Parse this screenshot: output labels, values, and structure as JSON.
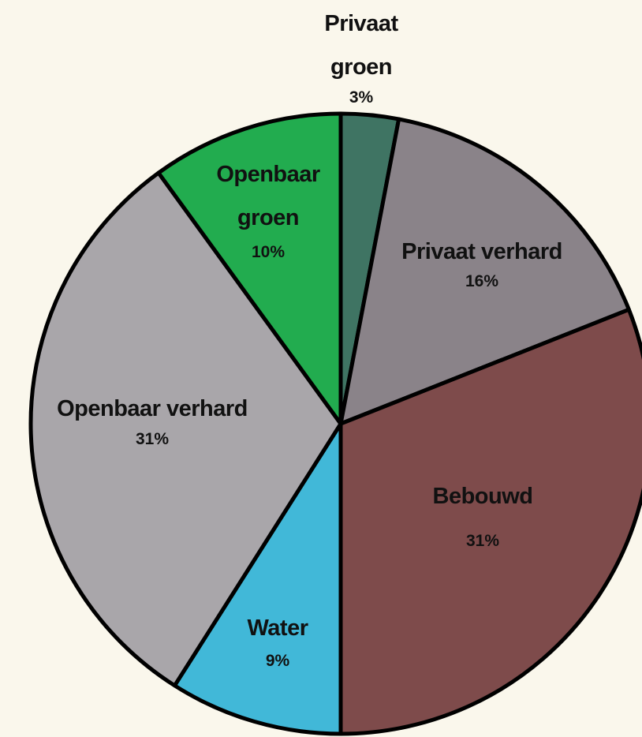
{
  "chart_data": {
    "type": "pie",
    "categories": [
      "Privaat groen",
      "Privaat verhard",
      "Bebouwd",
      "Water",
      "Openbaar verhard",
      "Openbaar groen"
    ],
    "values": [
      3,
      16,
      31,
      9,
      31,
      10
    ],
    "value_labels": [
      "3%",
      "16%",
      "31%",
      "9%",
      "31%",
      "10%"
    ],
    "colors": [
      "#3f7463",
      "#8a8389",
      "#7e4b4b",
      "#41b8d8",
      "#a9a6aa",
      "#22ac4f"
    ]
  }
}
